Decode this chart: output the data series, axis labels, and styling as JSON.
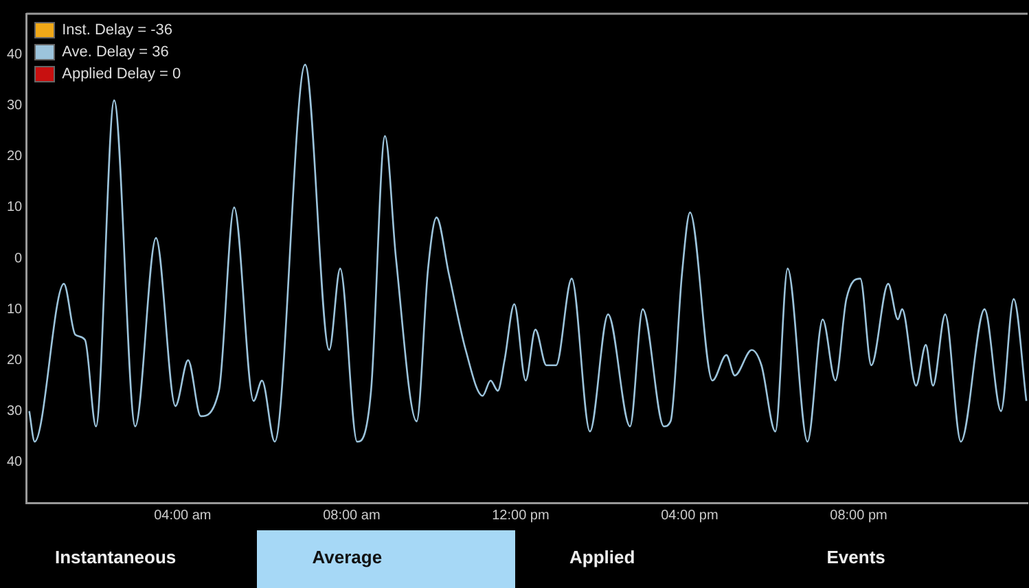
{
  "chart_data": {
    "type": "line",
    "x": [
      0.37,
      0.5,
      1.19,
      1.46,
      1.69,
      1.95,
      2.38,
      2.88,
      3.37,
      3.83,
      4.13,
      4.43,
      4.86,
      5.22,
      5.68,
      5.88,
      6.18,
      6.9,
      7.47,
      7.73,
      8.13,
      8.46,
      8.79,
      9.05,
      9.54,
      9.81,
      10.01,
      10.3,
      10.7,
      11.1,
      11.29,
      11.46,
      11.62,
      11.85,
      12.12,
      12.35,
      12.61,
      12.84,
      13.21,
      13.64,
      14.07,
      14.59,
      14.89,
      15.39,
      15.55,
      15.82,
      16.01,
      16.54,
      16.87,
      17.07,
      17.47,
      17.7,
      18.03,
      18.32,
      18.79,
      19.15,
      19.45,
      19.71,
      20.04,
      20.3,
      20.7,
      20.93,
      21.03,
      21.36,
      21.59,
      21.76,
      22.05,
      22.42,
      22.98,
      23.37,
      23.67,
      23.97
    ],
    "series": [
      {
        "name": "Inst. Delay = -36",
        "color": "#f0a818",
        "values": [
          null,
          null,
          null,
          null,
          null,
          null,
          null,
          null,
          null,
          null,
          null,
          null,
          null,
          null,
          null,
          null,
          null,
          null,
          null,
          null,
          null,
          null,
          null,
          null,
          null,
          null,
          null,
          null,
          null,
          null,
          null,
          null,
          null,
          null,
          null,
          null,
          null,
          null,
          null,
          null,
          null,
          null,
          null,
          null,
          null,
          null,
          null,
          null,
          null,
          null,
          null,
          null,
          null,
          null,
          null,
          null,
          null,
          null,
          null,
          null,
          null,
          null,
          null,
          null,
          null,
          null,
          null,
          null,
          null,
          null,
          null,
          null
        ]
      },
      {
        "name": "Ave. Delay = 36",
        "color": "#9cc4dc",
        "values": [
          -30,
          -36,
          -5,
          -15,
          -16,
          -33,
          31,
          -33,
          4,
          -29,
          -20,
          -31,
          -26,
          10,
          -28,
          -24,
          -36,
          38,
          -18,
          -2,
          -36,
          -26,
          24,
          0,
          -32,
          -2,
          8,
          -3,
          -18,
          -27,
          -24,
          -26,
          -20,
          -9,
          -24,
          -14,
          -21,
          -21,
          -4,
          -34,
          -11,
          -33,
          -10,
          -33,
          -32,
          -3,
          9,
          -24,
          -19,
          -23,
          -18,
          -21,
          -34,
          -2,
          -36,
          -12,
          -24,
          -8,
          -4,
          -21,
          -5,
          -12,
          -10,
          -25,
          -17,
          -25,
          -11,
          -36,
          -10,
          -30,
          -8,
          -28
        ]
      },
      {
        "name": "Applied Delay = 0",
        "color": "#c81010",
        "values": [
          null,
          null,
          null,
          null,
          null,
          null,
          null,
          null,
          null,
          null,
          null,
          null,
          null,
          null,
          null,
          null,
          null,
          null,
          null,
          null,
          null,
          null,
          null,
          null,
          null,
          null,
          null,
          null,
          null,
          null,
          null,
          null,
          null,
          null,
          null,
          null,
          null,
          null,
          null,
          null,
          null,
          null,
          null,
          null,
          null,
          null,
          null,
          null,
          null,
          null,
          null,
          null,
          null,
          null,
          null,
          null,
          null,
          null,
          null,
          null,
          null,
          null,
          null,
          null,
          null,
          null,
          null,
          null,
          null,
          null,
          null,
          null
        ]
      }
    ],
    "xlim": [
      0.3,
      24
    ],
    "xticks": [
      {
        "value": 4,
        "label": "04:00 am"
      },
      {
        "value": 8,
        "label": "08:00 am"
      },
      {
        "value": 12,
        "label": "12:00 pm"
      },
      {
        "value": 16,
        "label": "04:00 pm"
      },
      {
        "value": 20,
        "label": "08:00 pm"
      }
    ],
    "ylim": [
      -48,
      48
    ],
    "yticks": [
      {
        "value": -40,
        "label": "40"
      },
      {
        "value": -30,
        "label": "30"
      },
      {
        "value": -20,
        "label": "20"
      },
      {
        "value": -10,
        "label": "10"
      },
      0,
      10,
      20,
      30,
      40
    ],
    "grid": false,
    "legend": "top left",
    "marker": "none",
    "line_style": "solid",
    "annotations": [
      "Instantaneous",
      "Average",
      "Applied",
      "Events"
    ]
  }
}
